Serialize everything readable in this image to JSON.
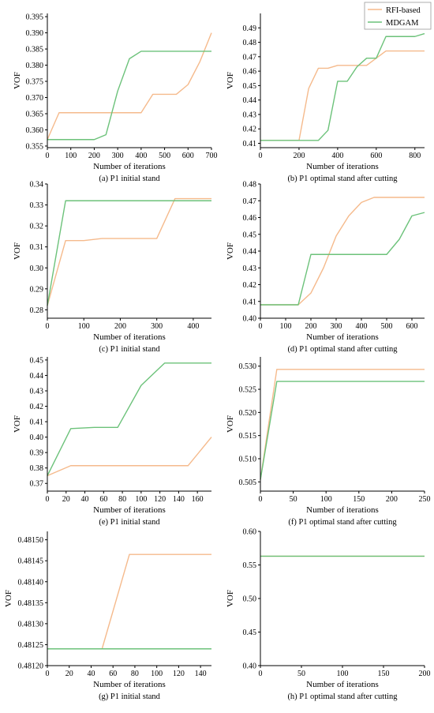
{
  "legend": {
    "placement": "top-right",
    "entries": [
      {
        "name": "RFI-based",
        "color": "#f5ba8c"
      },
      {
        "name": "MDGAM",
        "color": "#6cc27a"
      }
    ]
  },
  "colors": {
    "rfi": "#f5ba8c",
    "mdgam": "#6cc27a",
    "axis": "#000000"
  },
  "chart_data": [
    {
      "id": "a",
      "type": "line",
      "caption": "(a) P1 initial stand",
      "xlabel": "Number of iterations",
      "ylabel": "VOF",
      "xlim": [
        0,
        700
      ],
      "ylim": [
        0.3545,
        0.396
      ],
      "xticks": [
        0,
        100,
        200,
        300,
        400,
        500,
        600,
        700
      ],
      "yticks": [
        0.355,
        0.36,
        0.365,
        0.37,
        0.375,
        0.38,
        0.385,
        0.39,
        0.395
      ],
      "ytick_labels": [
        "0.355",
        "0.360",
        "0.365",
        "0.370",
        "0.375",
        "0.380",
        "0.385",
        "0.390",
        "0.395"
      ],
      "series": [
        {
          "name": "RFI-based",
          "x": [
            0,
            50,
            400,
            450,
            550,
            600,
            650,
            700
          ],
          "y": [
            0.357,
            0.3653,
            0.3653,
            0.371,
            0.371,
            0.374,
            0.381,
            0.39
          ]
        },
        {
          "name": "MDGAM",
          "x": [
            0,
            200,
            250,
            300,
            350,
            400,
            700
          ],
          "y": [
            0.357,
            0.357,
            0.3585,
            0.372,
            0.382,
            0.3843,
            0.3843
          ]
        }
      ]
    },
    {
      "id": "b",
      "type": "line",
      "caption": "(b) P1 optimal stand after cutting",
      "xlabel": "Number of iterations",
      "ylabel": "VOF",
      "xlim": [
        0,
        850
      ],
      "ylim": [
        0.407,
        0.5
      ],
      "xticks": [
        0,
        200,
        400,
        600,
        800
      ],
      "yticks": [
        0.41,
        0.42,
        0.43,
        0.44,
        0.45,
        0.46,
        0.47,
        0.48,
        0.49
      ],
      "ytick_labels": [
        "0.41",
        "0.42",
        "0.43",
        "0.44",
        "0.45",
        "0.46",
        "0.47",
        "0.48",
        "0.49"
      ],
      "series": [
        {
          "name": "RFI-based",
          "x": [
            0,
            200,
            250,
            300,
            350,
            400,
            550,
            650,
            850
          ],
          "y": [
            0.412,
            0.412,
            0.448,
            0.462,
            0.462,
            0.464,
            0.464,
            0.474,
            0.474
          ]
        },
        {
          "name": "MDGAM",
          "x": [
            0,
            300,
            350,
            400,
            450,
            500,
            550,
            600,
            650,
            800,
            850
          ],
          "y": [
            0.412,
            0.412,
            0.419,
            0.453,
            0.453,
            0.463,
            0.469,
            0.469,
            0.484,
            0.484,
            0.486
          ]
        }
      ]
    },
    {
      "id": "c",
      "type": "line",
      "caption": "(c) P1 initial stand",
      "xlabel": "Number of iterations",
      "ylabel": "VOF",
      "xlim": [
        0,
        450
      ],
      "ylim": [
        0.276,
        0.34
      ],
      "xticks": [
        0,
        100,
        200,
        300,
        400
      ],
      "yticks": [
        0.28,
        0.29,
        0.3,
        0.31,
        0.32,
        0.33,
        0.34
      ],
      "ytick_labels": [
        "0.28",
        "0.29",
        "0.30",
        "0.31",
        "0.32",
        "0.33",
        "0.34"
      ],
      "series": [
        {
          "name": "RFI-based",
          "x": [
            0,
            50,
            100,
            150,
            300,
            350,
            450
          ],
          "y": [
            0.282,
            0.313,
            0.313,
            0.314,
            0.314,
            0.333,
            0.333
          ]
        },
        {
          "name": "MDGAM",
          "x": [
            0,
            50,
            450
          ],
          "y": [
            0.282,
            0.332,
            0.332
          ]
        }
      ]
    },
    {
      "id": "d",
      "type": "line",
      "caption": "(d) P1 optimal stand after cutting",
      "xlabel": "Number of iterations",
      "ylabel": "VOF",
      "xlim": [
        0,
        650
      ],
      "ylim": [
        0.4,
        0.48
      ],
      "xticks": [
        0,
        100,
        200,
        300,
        400,
        500,
        600
      ],
      "yticks": [
        0.4,
        0.41,
        0.42,
        0.43,
        0.44,
        0.45,
        0.46,
        0.47,
        0.48
      ],
      "ytick_labels": [
        "0.40",
        "0.41",
        "0.42",
        "0.43",
        "0.44",
        "0.45",
        "0.46",
        "0.47",
        "0.48"
      ],
      "series": [
        {
          "name": "RFI-based",
          "x": [
            0,
            150,
            200,
            250,
            300,
            350,
            400,
            450,
            650
          ],
          "y": [
            0.408,
            0.408,
            0.415,
            0.43,
            0.449,
            0.461,
            0.469,
            0.472,
            0.472
          ]
        },
        {
          "name": "MDGAM",
          "x": [
            0,
            150,
            200,
            500,
            550,
            600,
            650
          ],
          "y": [
            0.408,
            0.408,
            0.438,
            0.438,
            0.447,
            0.461,
            0.463
          ]
        }
      ]
    },
    {
      "id": "e",
      "type": "line",
      "caption": "(e) P1 initial stand",
      "xlabel": "Number of iterations",
      "ylabel": "VOF",
      "xlim": [
        0,
        175
      ],
      "ylim": [
        0.365,
        0.452
      ],
      "xticks": [
        0,
        20,
        40,
        60,
        80,
        100,
        120,
        140,
        160
      ],
      "yticks": [
        0.37,
        0.38,
        0.39,
        0.4,
        0.41,
        0.42,
        0.43,
        0.44,
        0.45
      ],
      "ytick_labels": [
        "0.37",
        "0.38",
        "0.39",
        "0.40",
        "0.41",
        "0.42",
        "0.43",
        "0.44",
        "0.45"
      ],
      "series": [
        {
          "name": "RFI-based",
          "x": [
            0,
            25,
            150,
            175
          ],
          "y": [
            0.375,
            0.3815,
            0.3815,
            0.4
          ]
        },
        {
          "name": "MDGAM",
          "x": [
            0,
            25,
            50,
            75,
            100,
            125,
            175
          ],
          "y": [
            0.375,
            0.4055,
            0.4063,
            0.4063,
            0.4335,
            0.448,
            0.448
          ]
        }
      ]
    },
    {
      "id": "f",
      "type": "line",
      "caption": "(f) P1 optimal stand after cutting",
      "xlabel": "Number of iterations",
      "ylabel": "VOF",
      "xlim": [
        0,
        250
      ],
      "ylim": [
        0.503,
        0.532
      ],
      "xticks": [
        0,
        50,
        100,
        150,
        200,
        250
      ],
      "yticks": [
        0.505,
        0.51,
        0.515,
        0.52,
        0.525,
        0.53
      ],
      "ytick_labels": [
        "0.505",
        "0.510",
        "0.515",
        "0.520",
        "0.525",
        "0.530"
      ],
      "series": [
        {
          "name": "RFI-based",
          "x": [
            0,
            25,
            250
          ],
          "y": [
            0.5055,
            0.5293,
            0.5293
          ]
        },
        {
          "name": "MDGAM",
          "x": [
            0,
            25,
            250
          ],
          "y": [
            0.5055,
            0.5267,
            0.5267
          ]
        }
      ]
    },
    {
      "id": "g",
      "type": "line",
      "caption": "(g) P1 initial stand",
      "xlabel": "Number of iterations",
      "ylabel": "VOF",
      "xlim": [
        0,
        150
      ],
      "ylim": [
        0.4812,
        0.48152
      ],
      "xticks": [
        0,
        20,
        40,
        60,
        80,
        100,
        120,
        140
      ],
      "yticks": [
        0.4812,
        0.48125,
        0.4813,
        0.48135,
        0.4814,
        0.48145,
        0.4815
      ],
      "ytick_labels": [
        "0.48120",
        "0.48125",
        "0.48130",
        "0.48135",
        "0.48140",
        "0.48145",
        "0.48150"
      ],
      "series": [
        {
          "name": "RFI-based",
          "x": [
            0,
            50,
            75,
            150
          ],
          "y": [
            0.48124,
            0.48124,
            0.481465,
            0.481465
          ]
        },
        {
          "name": "MDGAM",
          "x": [
            0,
            150
          ],
          "y": [
            0.48124,
            0.48124
          ]
        }
      ]
    },
    {
      "id": "h",
      "type": "line",
      "caption": "(h) P1 optimal stand after cutting",
      "xlabel": "Number of iterations",
      "ylabel": "VOF",
      "xlim": [
        0,
        200
      ],
      "ylim": [
        0.4,
        0.6
      ],
      "xticks": [
        0,
        50,
        100,
        150,
        200
      ],
      "yticks": [
        0.4,
        0.45,
        0.5,
        0.55,
        0.6
      ],
      "ytick_labels": [
        "0.40",
        "0.45",
        "0.50",
        "0.55",
        "0.60"
      ],
      "series": [
        {
          "name": "RFI-based",
          "x": [
            0,
            200
          ],
          "y": [
            0.563,
            0.563
          ]
        },
        {
          "name": "MDGAM",
          "x": [
            0,
            200
          ],
          "y": [
            0.563,
            0.563
          ]
        }
      ]
    }
  ]
}
